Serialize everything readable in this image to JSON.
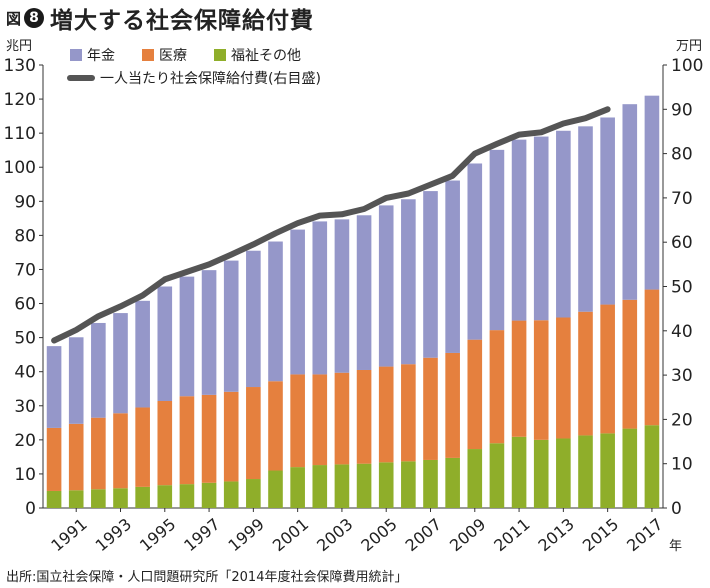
{
  "figure": {
    "label": "図",
    "number": "8",
    "title": "増大する社会保障給付費"
  },
  "source": "出所:国立社会保障・人口問題研究所「2014年度社会保障費用統計」",
  "colors": {
    "pension": "#9597c9",
    "medical": "#e5803e",
    "welfare": "#8fae2a",
    "line": "#555555",
    "axis": "#333333"
  },
  "chart_data": {
    "type": "bar",
    "stacked": true,
    "x": [
      1990,
      1991,
      1992,
      1993,
      1994,
      1995,
      1996,
      1997,
      1998,
      1999,
      2000,
      2001,
      2002,
      2003,
      2004,
      2005,
      2006,
      2007,
      2008,
      2009,
      2010,
      2011,
      2012,
      2013,
      2014,
      2015,
      2016,
      2017
    ],
    "tick_labels": [
      "1991",
      "1993",
      "1995",
      "1997",
      "1999",
      "2001",
      "2003",
      "2005",
      "2007",
      "2009",
      "2011",
      "2013",
      "2015",
      "2017"
    ],
    "xunit": "年",
    "series": [
      {
        "name": "福祉その他",
        "key": "welfare",
        "values": [
          5.0,
          5.2,
          5.5,
          5.8,
          6.2,
          6.7,
          7.0,
          7.4,
          7.8,
          8.5,
          11.0,
          12.0,
          12.6,
          12.8,
          13.0,
          13.4,
          13.7,
          14.1,
          14.7,
          17.3,
          19.0,
          20.9,
          20.0,
          20.4,
          21.3,
          21.9,
          23.3,
          24.3
        ]
      },
      {
        "name": "医療",
        "key": "medical",
        "values": [
          18.5,
          19.5,
          21.0,
          22.0,
          23.3,
          24.7,
          25.8,
          25.8,
          26.3,
          27.0,
          26.2,
          27.2,
          26.6,
          26.9,
          27.5,
          28.1,
          28.5,
          30.0,
          30.8,
          32.1,
          33.2,
          34.1,
          35.1,
          35.5,
          36.3,
          37.8,
          37.8,
          39.8
        ]
      },
      {
        "name": "年金",
        "key": "pension",
        "values": [
          24.0,
          25.4,
          27.8,
          29.4,
          31.3,
          33.6,
          35.1,
          36.6,
          38.5,
          40.0,
          41.0,
          42.5,
          44.9,
          45.0,
          45.4,
          47.3,
          48.4,
          48.9,
          50.6,
          51.7,
          52.9,
          53.1,
          53.9,
          54.8,
          54.4,
          54.9,
          57.4,
          56.9
        ]
      }
    ],
    "line": {
      "name": "一人当たり社会保障給付費(右目盛)",
      "axis": "right",
      "values": [
        37.8,
        40.2,
        43.3,
        45.5,
        48.0,
        51.6,
        53.3,
        55.0,
        57.2,
        59.5,
        62.0,
        64.3,
        66.0,
        66.3,
        67.5,
        70.0,
        71.0,
        73.0,
        75.0,
        80.0,
        82.2,
        84.3,
        84.8,
        86.8,
        88.0,
        90.0
      ]
    },
    "left_axis": {
      "unit": "兆円",
      "min": 0,
      "max": 130,
      "step": 10
    },
    "right_axis": {
      "unit": "万円",
      "min": 0,
      "max": 100,
      "step": 10
    },
    "legend": {
      "placement": "top-left",
      "entries": [
        "年金",
        "医療",
        "福祉その他",
        "一人当たり社会保障給付費(右目盛)"
      ]
    },
    "grid": false
  }
}
